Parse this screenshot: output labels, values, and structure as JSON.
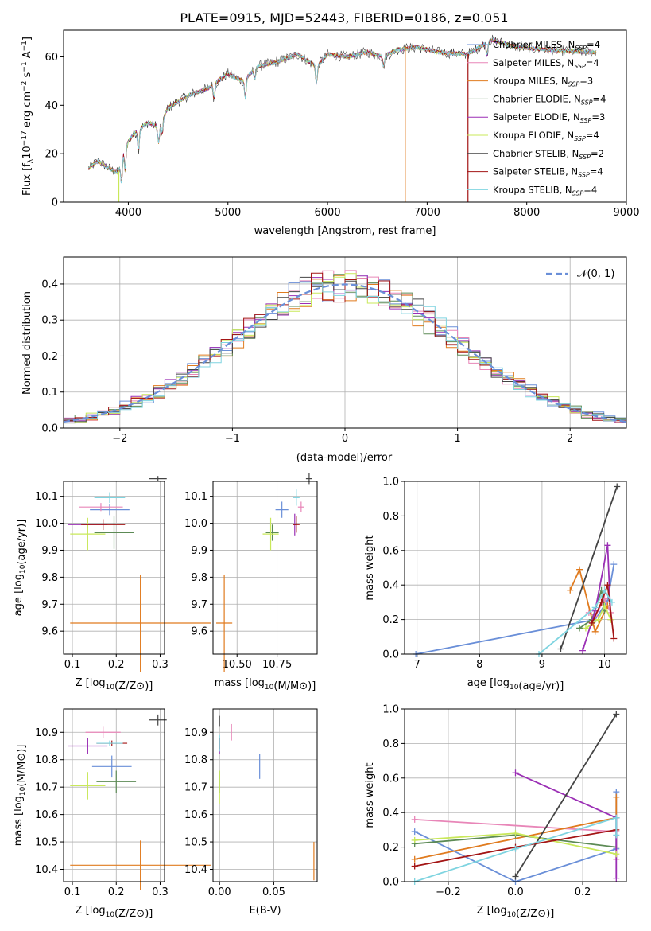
{
  "title": "PLATE=0915, MJD=52443, FIBERID=0186, z=0.051",
  "colors": {
    "chab_miles": "#6a8fd8",
    "salp_miles": "#e886b8",
    "krou_miles": "#e07b1f",
    "chab_elodie": "#5c8a55",
    "salp_elodie": "#9b2fb5",
    "krou_elodie": "#c9e85a",
    "chab_stelib": "#444444",
    "salp_stelib": "#a31515",
    "krou_stelib": "#7fd4e0"
  },
  "chart_data": [
    {
      "id": "spectrum",
      "type": "line",
      "xlabel": "wavelength [Angstrom, rest frame]",
      "xticks": [
        "4000",
        "5000",
        "6000",
        "7000",
        "8000",
        "9000"
      ],
      "yticks": [
        "0",
        "20",
        "40",
        "60"
      ],
      "xlim": [
        3350,
        9000
      ],
      "ylim": [
        0,
        71
      ],
      "ylabel_parts": [
        "Flux [f",
        "λ",
        "10",
        "−17",
        " erg cm",
        "−2",
        " s",
        "−1",
        " A",
        "−1",
        "]"
      ],
      "legend": [
        {
          "label": "Chabrier MILES, N",
          "sub": "SSP",
          "tail": "=4",
          "color": "chab_miles"
        },
        {
          "label": "Salpeter MILES, N",
          "sub": "SSP",
          "tail": "=4",
          "color": "salp_miles"
        },
        {
          "label": "Kroupa MILES, N",
          "sub": "SSP",
          "tail": "=3",
          "color": "krou_miles"
        },
        {
          "label": "Chabrier ELODIE, N",
          "sub": "SSP",
          "tail": "=4",
          "color": "chab_elodie"
        },
        {
          "label": "Salpeter ELODIE, N",
          "sub": "SSP",
          "tail": "=3",
          "color": "salp_elodie"
        },
        {
          "label": "Kroupa ELODIE, N",
          "sub": "SSP",
          "tail": "=4",
          "color": "krou_elodie"
        },
        {
          "label": "Chabrier STELIB, N",
          "sub": "SSP",
          "tail": "=2",
          "color": "chab_stelib"
        },
        {
          "label": "Salpeter STELIB, N",
          "sub": "SSP",
          "tail": "=4",
          "color": "salp_stelib"
        },
        {
          "label": "Kroupa STELIB, N",
          "sub": "SSP",
          "tail": "=4",
          "color": "krou_stelib"
        }
      ],
      "continuum_knots": [
        [
          3600,
          14
        ],
        [
          3700,
          17
        ],
        [
          3800,
          14
        ],
        [
          3900,
          12
        ],
        [
          3950,
          22
        ],
        [
          4050,
          28
        ],
        [
          4200,
          33
        ],
        [
          4300,
          31
        ],
        [
          4400,
          39
        ],
        [
          4600,
          44
        ],
        [
          4800,
          47
        ],
        [
          5000,
          53
        ],
        [
          5150,
          50
        ],
        [
          5300,
          56
        ],
        [
          5500,
          58
        ],
        [
          5700,
          61
        ],
        [
          5890,
          56
        ],
        [
          6000,
          61
        ],
        [
          6200,
          60
        ],
        [
          6400,
          62
        ],
        [
          6560,
          60
        ],
        [
          6700,
          63
        ],
        [
          6900,
          64
        ],
        [
          7100,
          62
        ],
        [
          7400,
          61
        ],
        [
          7650,
          67
        ],
        [
          7900,
          64
        ],
        [
          8200,
          63
        ],
        [
          8600,
          62
        ]
      ],
      "absorption_lines": [
        [
          3933,
          11
        ],
        [
          3968,
          10
        ],
        [
          4102,
          8
        ],
        [
          4305,
          7
        ],
        [
          4340,
          6
        ],
        [
          4861,
          6
        ],
        [
          5175,
          8
        ],
        [
          5270,
          4
        ],
        [
          5890,
          7
        ],
        [
          6563,
          4
        ],
        [
          7600,
          5
        ]
      ],
      "spikes": [
        {
          "x": 3905,
          "y": 0,
          "color": "krou_elodie"
        },
        {
          "x": 6780,
          "y": 0,
          "color": "krou_miles"
        },
        {
          "x": 7410,
          "y": 0,
          "color": "salp_stelib"
        }
      ]
    },
    {
      "id": "residuals",
      "type": "histogram",
      "xlabel": "(data-model)/error",
      "ylabel": "Normed distribution",
      "xlim": [
        -2.5,
        2.5
      ],
      "ylim": [
        0,
        0.475
      ],
      "xticks": [
        "−2",
        "−1",
        "0",
        "1",
        "2"
      ],
      "yticks": [
        "0.0",
        "0.1",
        "0.2",
        "0.3",
        "0.4"
      ],
      "legend": "𝒩(0, 1)",
      "normal_color": "#6a8fd8",
      "bin_width": 0.1
    },
    {
      "id": "age_vs_Z",
      "type": "scatter",
      "xlabel": "Z [log10(Z/Z⊙)]",
      "ylabel": "age  [log10(age/yr)]",
      "xlim": [
        0.08,
        0.31
      ],
      "ylim": [
        9.515,
        10.155
      ],
      "xticks": [
        "0.1",
        "0.2",
        "0.3"
      ],
      "yticks": [
        "9.6",
        "9.7",
        "9.8",
        "9.9",
        "10.0",
        "10.1"
      ],
      "points": [
        {
          "color": "chab_miles",
          "x": 0.185,
          "y": 10.05,
          "xerr": 0.045,
          "yerr": 0.02
        },
        {
          "color": "salp_miles",
          "x": 0.165,
          "y": 10.06,
          "xerr": 0.05,
          "yerr": 0.015
        },
        {
          "color": "krou_miles",
          "x": 0.255,
          "y": 9.63,
          "xerr": 0.16,
          "yerr": 0.18
        },
        {
          "color": "chab_elodie",
          "x": 0.195,
          "y": 9.965,
          "xerr": 0.045,
          "yerr": 0.06
        },
        {
          "color": "salp_elodie",
          "x": 0.135,
          "y": 9.995,
          "xerr": 0.045,
          "yerr": 0.015
        },
        {
          "color": "krou_elodie",
          "x": 0.135,
          "y": 9.96,
          "xerr": 0.04,
          "yerr": 0.06
        },
        {
          "color": "chab_stelib",
          "x": 0.295,
          "y": 10.165,
          "xerr": 0.02,
          "yerr": 0.01
        },
        {
          "color": "salp_stelib",
          "x": 0.17,
          "y": 9.995,
          "xerr": 0.05,
          "yerr": 0.02
        },
        {
          "color": "krou_stelib",
          "x": 0.185,
          "y": 10.095,
          "xerr": 0.035,
          "yerr": 0.02
        }
      ]
    },
    {
      "id": "age_vs_mass",
      "type": "scatter",
      "xlabel": "mass [log10(M/M⊙)]",
      "xlim": [
        10.35,
        11.0
      ],
      "ylim": [
        9.515,
        10.155
      ],
      "xticks": [
        "10.50",
        "10.75"
      ],
      "yticks": [
        "9.6",
        "9.7",
        "9.8",
        "9.9",
        "10.0",
        "10.1"
      ],
      "points": [
        {
          "color": "chab_miles",
          "x": 10.78,
          "y": 10.05,
          "xerr": 0.04,
          "yerr": 0.03
        },
        {
          "color": "salp_miles",
          "x": 10.9,
          "y": 10.06,
          "xerr": 0.02,
          "yerr": 0.02
        },
        {
          "color": "krou_miles",
          "x": 10.42,
          "y": 9.63,
          "xerr": 0.05,
          "yerr": 0.18
        },
        {
          "color": "chab_elodie",
          "x": 10.72,
          "y": 9.965,
          "xerr": 0.04,
          "yerr": 0.03
        },
        {
          "color": "salp_elodie",
          "x": 10.86,
          "y": 9.995,
          "xerr": 0.01,
          "yerr": 0.04
        },
        {
          "color": "krou_elodie",
          "x": 10.71,
          "y": 9.96,
          "xerr": 0.05,
          "yerr": 0.06
        },
        {
          "color": "chab_stelib",
          "x": 10.95,
          "y": 10.165,
          "xerr": 0.02,
          "yerr": 0.02
        },
        {
          "color": "salp_stelib",
          "x": 10.87,
          "y": 9.995,
          "xerr": 0.02,
          "yerr": 0.03
        },
        {
          "color": "krou_stelib",
          "x": 10.87,
          "y": 10.095,
          "xerr": 0.02,
          "yerr": 0.03
        }
      ]
    },
    {
      "id": "weight_vs_age",
      "type": "line",
      "xlabel": "age  [log10(age/yr)]",
      "ylabel": "mass weight",
      "xlim": [
        6.8,
        10.35
      ],
      "ylim": [
        0,
        1.0
      ],
      "xticks": [
        "7",
        "8",
        "9",
        "10"
      ],
      "yticks": [
        "0.0",
        "0.2",
        "0.4",
        "0.6",
        "0.8",
        "1.0"
      ],
      "series": [
        {
          "color": "chab_miles",
          "pts": [
            [
              6.98,
              0.0
            ],
            [
              9.85,
              0.2
            ],
            [
              10.05,
              0.31
            ],
            [
              10.15,
              0.52
            ]
          ]
        },
        {
          "color": "salp_miles",
          "pts": [
            [
              9.75,
              0.24
            ],
            [
              9.85,
              0.22
            ],
            [
              10.0,
              0.32
            ],
            [
              10.1,
              0.24
            ]
          ]
        },
        {
          "color": "krou_miles",
          "pts": [
            [
              9.45,
              0.37
            ],
            [
              9.6,
              0.49
            ],
            [
              9.85,
              0.13
            ],
            [
              10.05,
              0.28
            ]
          ]
        },
        {
          "color": "chab_elodie",
          "pts": [
            [
              9.6,
              0.15
            ],
            [
              9.8,
              0.2
            ],
            [
              9.95,
              0.37
            ],
            [
              10.0,
              0.25
            ]
          ]
        },
        {
          "color": "salp_elodie",
          "pts": [
            [
              9.65,
              0.02
            ],
            [
              9.85,
              0.25
            ],
            [
              10.05,
              0.63
            ],
            [
              10.1,
              0.2
            ]
          ]
        },
        {
          "color": "krou_elodie",
          "pts": [
            [
              9.7,
              0.15
            ],
            [
              9.9,
              0.2
            ],
            [
              10.0,
              0.28
            ],
            [
              10.1,
              0.2
            ]
          ]
        },
        {
          "color": "chab_stelib",
          "pts": [
            [
              9.3,
              0.03
            ],
            [
              10.2,
              0.97
            ]
          ]
        },
        {
          "color": "salp_stelib",
          "pts": [
            [
              9.8,
              0.18
            ],
            [
              9.95,
              0.3
            ],
            [
              10.05,
              0.4
            ],
            [
              10.15,
              0.09
            ]
          ]
        },
        {
          "color": "krou_stelib",
          "pts": [
            [
              8.95,
              0.0
            ],
            [
              9.85,
              0.27
            ],
            [
              10.0,
              0.37
            ],
            [
              10.12,
              0.3
            ]
          ]
        }
      ]
    },
    {
      "id": "mass_vs_Z",
      "type": "scatter",
      "xlabel": "Z [log10(Z/Z⊙)]",
      "ylabel": "mass [log10(M/M⊙)]",
      "xlim": [
        0.08,
        0.31
      ],
      "ylim": [
        10.355,
        10.985
      ],
      "xticks": [
        "0.1",
        "0.2",
        "0.3"
      ],
      "yticks": [
        "10.4",
        "10.5",
        "10.6",
        "10.7",
        "10.8",
        "10.9"
      ],
      "points": [
        {
          "color": "chab_miles",
          "x": 0.19,
          "y": 10.775,
          "xerr": 0.045,
          "yerr": 0.04
        },
        {
          "color": "salp_miles",
          "x": 0.17,
          "y": 10.9,
          "xerr": 0.04,
          "yerr": 0.02
        },
        {
          "color": "krou_miles",
          "x": 0.255,
          "y": 10.415,
          "xerr": 0.16,
          "yerr": 0.09
        },
        {
          "color": "chab_elodie",
          "x": 0.2,
          "y": 10.72,
          "xerr": 0.045,
          "yerr": 0.04
        },
        {
          "color": "salp_elodie",
          "x": 0.135,
          "y": 10.85,
          "xerr": 0.045,
          "yerr": 0.03
        },
        {
          "color": "krou_elodie",
          "x": 0.135,
          "y": 10.705,
          "xerr": 0.04,
          "yerr": 0.05
        },
        {
          "color": "chab_stelib",
          "x": 0.295,
          "y": 10.945,
          "xerr": 0.02,
          "yerr": 0.02
        },
        {
          "color": "salp_stelib",
          "x": 0.19,
          "y": 10.86,
          "xerr": 0.035,
          "yerr": 0.01
        },
        {
          "color": "krou_stelib",
          "x": 0.185,
          "y": 10.86,
          "xerr": 0.03,
          "yerr": 0.01
        }
      ]
    },
    {
      "id": "mass_vs_ebv",
      "type": "scatter",
      "xlabel": "E(B-V)",
      "xlim": [
        -0.006,
        0.09
      ],
      "ylim": [
        10.355,
        10.985
      ],
      "xticks": [
        "0.00",
        "0.05"
      ],
      "yticks": [
        "10.4",
        "10.5",
        "10.6",
        "10.7",
        "10.8",
        "10.9"
      ],
      "points": [
        {
          "color": "chab_miles",
          "x": 0.037,
          "y": 10.775,
          "xerr": 0,
          "yerr": 0.045
        },
        {
          "color": "salp_miles",
          "x": 0.011,
          "y": 10.9,
          "xerr": 0,
          "yerr": 0.03
        },
        {
          "color": "krou_miles",
          "x": 0.087,
          "y": 10.43,
          "xerr": 0,
          "yerr": 0.07
        },
        {
          "color": "chab_elodie",
          "x": 0.0,
          "y": 10.72,
          "xerr": 0,
          "yerr": 0.04
        },
        {
          "color": "salp_elodie",
          "x": 0.0,
          "y": 10.85,
          "xerr": 0,
          "yerr": 0.03
        },
        {
          "color": "krou_elodie",
          "x": 0.0,
          "y": 10.7,
          "xerr": 0,
          "yerr": 0.06
        },
        {
          "color": "chab_stelib",
          "x": 0.0,
          "y": 10.94,
          "xerr": 0,
          "yerr": 0.02
        },
        {
          "color": "salp_stelib",
          "x": 0.0,
          "y": 10.86,
          "xerr": 0,
          "yerr": 0.02
        },
        {
          "color": "krou_stelib",
          "x": 0.0,
          "y": 10.86,
          "xerr": 0,
          "yerr": 0.03
        }
      ]
    },
    {
      "id": "weight_vs_Z",
      "type": "line",
      "xlabel": "Z [log10(Z/Z⊙)]",
      "ylabel": "mass weight",
      "xlim": [
        -0.33,
        0.33
      ],
      "ylim": [
        0,
        1.0
      ],
      "xticks": [
        "−0.2",
        "0.0",
        "0.2"
      ],
      "yticks": [
        "0.0",
        "0.2",
        "0.4",
        "0.6",
        "0.8",
        "1.0"
      ],
      "series": [
        {
          "color": "chab_miles",
          "pts": [
            [
              -0.3,
              0.29
            ],
            [
              0.0,
              0.0
            ],
            [
              0.3,
              0.19
            ],
            [
              0.3,
              0.52
            ]
          ]
        },
        {
          "color": "salp_miles",
          "pts": [
            [
              -0.3,
              0.36
            ],
            [
              0.3,
              0.29
            ],
            [
              0.3,
              0.13
            ]
          ]
        },
        {
          "color": "krou_miles",
          "pts": [
            [
              -0.3,
              0.13
            ],
            [
              0.3,
              0.37
            ],
            [
              0.3,
              0.49
            ]
          ]
        },
        {
          "color": "chab_elodie",
          "pts": [
            [
              -0.3,
              0.22
            ],
            [
              0.0,
              0.27
            ],
            [
              0.3,
              0.2
            ],
            [
              0.3,
              0.37
            ]
          ]
        },
        {
          "color": "salp_elodie",
          "pts": [
            [
              0.0,
              0.63
            ],
            [
              0.3,
              0.37
            ],
            [
              0.3,
              0.02
            ]
          ]
        },
        {
          "color": "krou_elodie",
          "pts": [
            [
              -0.3,
              0.24
            ],
            [
              0.0,
              0.28
            ],
            [
              0.3,
              0.16
            ]
          ]
        },
        {
          "color": "chab_stelib",
          "pts": [
            [
              0.0,
              0.03
            ],
            [
              0.3,
              0.97
            ]
          ]
        },
        {
          "color": "salp_stelib",
          "pts": [
            [
              -0.3,
              0.09
            ],
            [
              0.0,
              0.2
            ],
            [
              0.3,
              0.3
            ]
          ]
        },
        {
          "color": "krou_stelib",
          "pts": [
            [
              -0.3,
              0.0
            ],
            [
              0.0,
              0.19
            ],
            [
              0.3,
              0.37
            ],
            [
              0.3,
              0.27
            ]
          ]
        }
      ]
    }
  ]
}
